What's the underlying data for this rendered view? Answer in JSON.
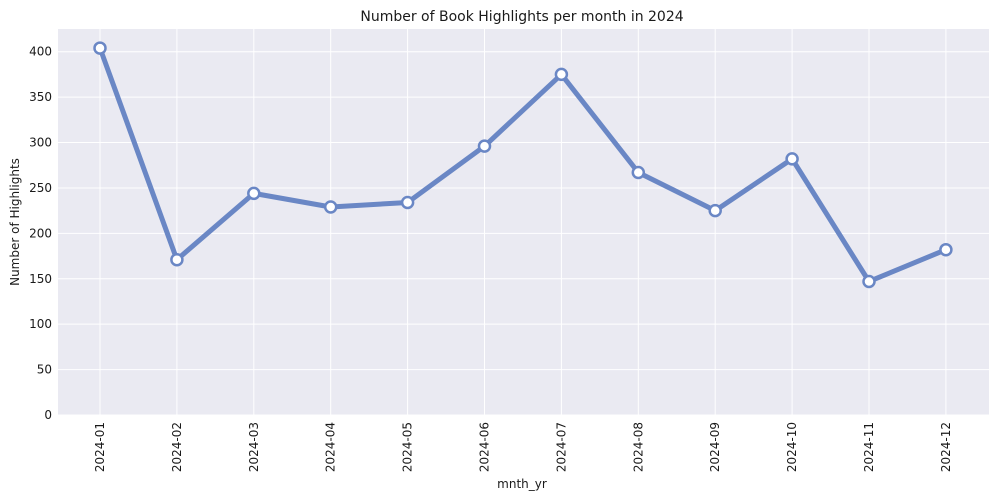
{
  "chart_data": {
    "type": "line",
    "title": "Number of Book Highlights per month in 2024",
    "xlabel": "mnth_yr",
    "ylabel": "Number of Highlights",
    "categories": [
      "2024-01",
      "2024-02",
      "2024-03",
      "2024-04",
      "2024-05",
      "2024-06",
      "2024-07",
      "2024-08",
      "2024-09",
      "2024-10",
      "2024-11",
      "2024-12"
    ],
    "values": [
      404,
      171,
      244,
      229,
      234,
      296,
      375,
      267,
      225,
      282,
      147,
      182
    ],
    "ylim": [
      0,
      425
    ],
    "yticks": [
      0,
      50,
      100,
      150,
      200,
      250,
      300,
      350,
      400
    ],
    "grid": true,
    "line_color": "#6a87c5",
    "marker_fill": "#ffffff",
    "plot_background": "#eaeaf2"
  }
}
